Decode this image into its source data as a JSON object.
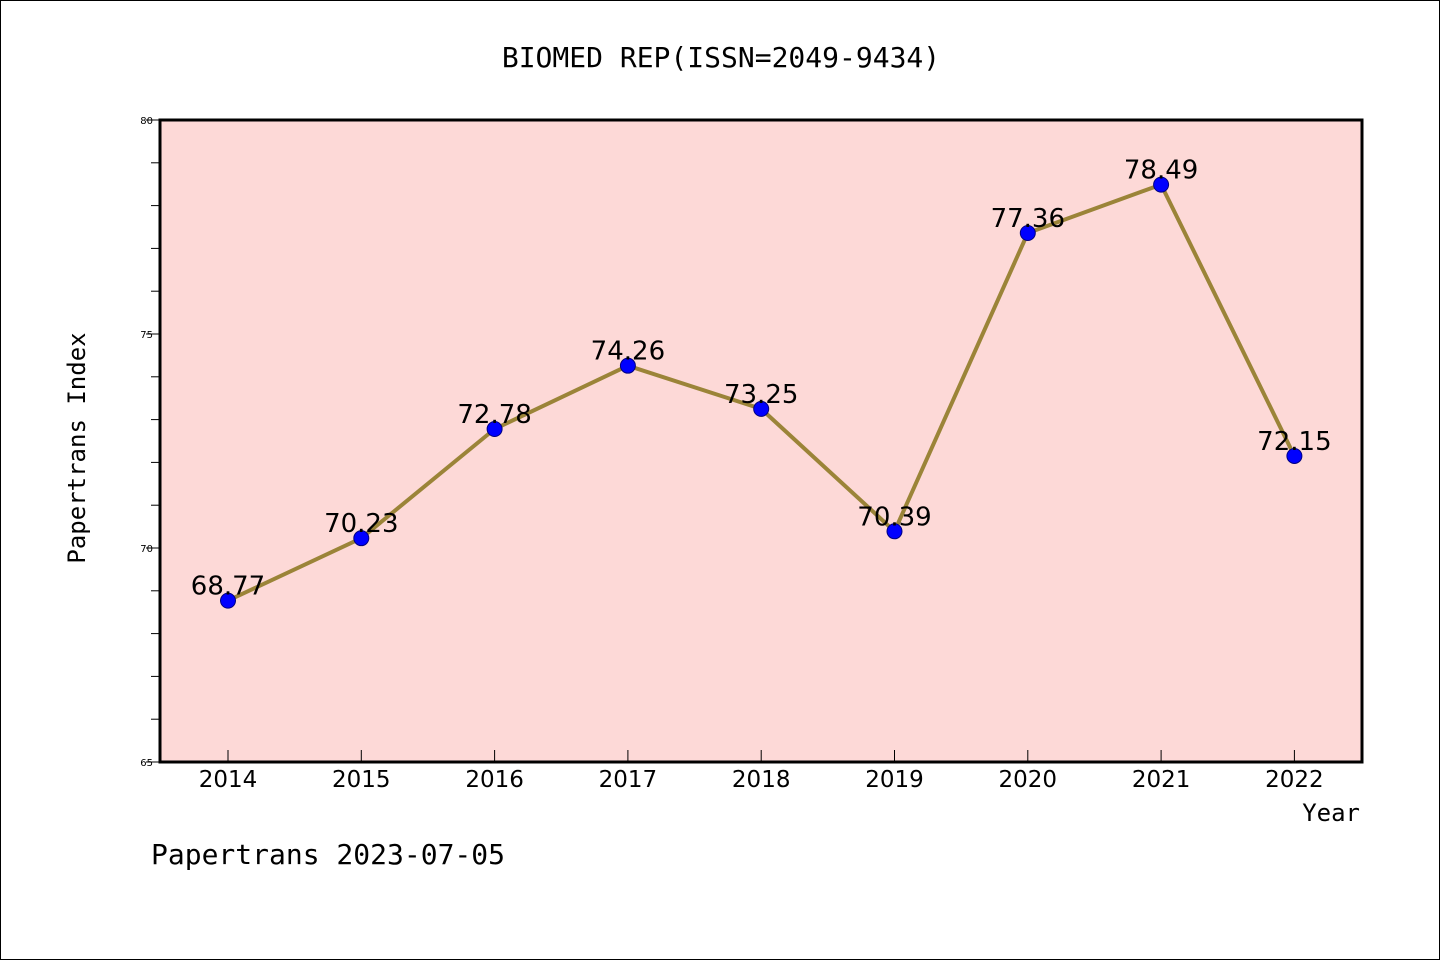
{
  "chart_data": {
    "type": "line",
    "title": "BIOMED REP(ISSN=2049-9434)",
    "xlabel": "Year",
    "ylabel": "Papertrans Index",
    "x": [
      "2014",
      "2015",
      "2016",
      "2017",
      "2018",
      "2019",
      "2020",
      "2021",
      "2022"
    ],
    "values": [
      68.77,
      70.23,
      72.78,
      74.26,
      73.25,
      70.39,
      77.36,
      78.49,
      72.15
    ],
    "data_labels": [
      "68.77",
      "70.23",
      "72.78",
      "74.26",
      "73.25",
      "70.39",
      "77.36",
      "78.49",
      "72.15"
    ],
    "ylim": [
      65,
      80
    ],
    "yticks": [
      "65",
      "70",
      "75",
      "80"
    ],
    "grid": false,
    "legend": "none",
    "colors": {
      "plot_background": "#fdd9d7",
      "line": "#9b8438",
      "marker": "#0000ff",
      "marker_edge": "#000080"
    }
  },
  "footer": {
    "text": "Papertrans 2023-07-05"
  }
}
